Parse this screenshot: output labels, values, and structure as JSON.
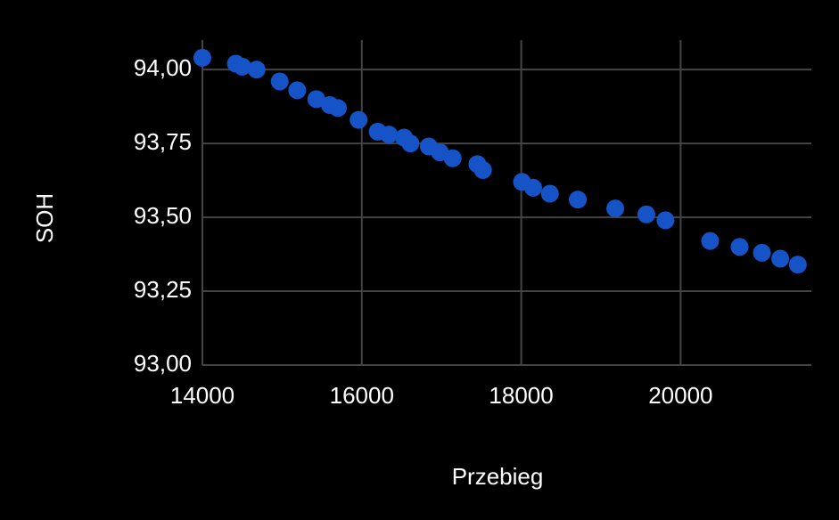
{
  "chart_data": {
    "type": "scatter",
    "x_label": "Przebieg",
    "y_label": "SOH",
    "color": "#1553c7",
    "grid": true,
    "x": [
      14000,
      14420,
      14500,
      14680,
      14970,
      15190,
      15430,
      15600,
      15700,
      15960,
      16200,
      16340,
      16530,
      16610,
      16840,
      16980,
      17140,
      17450,
      17520,
      18010,
      18150,
      18360,
      18710,
      19180,
      19570,
      19810,
      20370,
      20740,
      21020,
      21250,
      21470
    ],
    "values": [
      94.04,
      94.02,
      94.01,
      94.0,
      93.96,
      93.93,
      93.9,
      93.88,
      93.87,
      93.83,
      93.79,
      93.78,
      93.77,
      93.75,
      93.74,
      93.72,
      93.7,
      93.68,
      93.66,
      93.62,
      93.6,
      93.58,
      93.56,
      93.53,
      93.51,
      93.49,
      93.42,
      93.4,
      93.38,
      93.36,
      93.34
    ],
    "xlim": [
      14000,
      21640
    ],
    "xticks": [
      14000,
      16000,
      18000,
      20000
    ],
    "ylim": [
      93,
      94.1
    ],
    "yticks": [
      {
        "value": 93,
        "label": "93,00"
      },
      {
        "value": 93.25,
        "label": "93,25"
      },
      {
        "value": 93.5,
        "label": "93,50"
      },
      {
        "value": 93.75,
        "label": "93,75"
      },
      {
        "value": 94,
        "label": "94,00"
      }
    ]
  }
}
